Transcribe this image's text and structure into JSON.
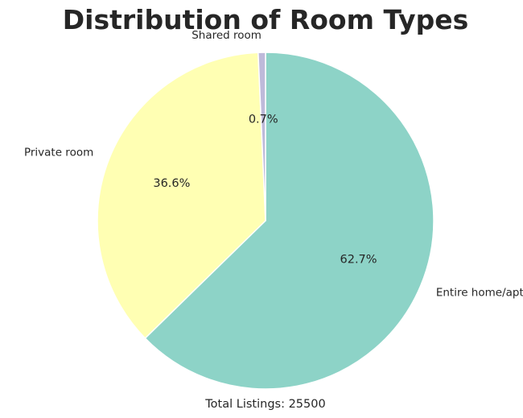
{
  "chart_data": {
    "type": "pie",
    "title": "Distribution of Room Types",
    "categories": [
      "Entire home/apt",
      "Private room",
      "Shared room"
    ],
    "values": [
      62.7,
      36.6,
      0.7
    ],
    "value_labels": [
      "62.7%",
      "36.6%",
      "0.7%"
    ],
    "colors": [
      "#8dd3c7",
      "#ffffb3",
      "#bebada"
    ],
    "start_angle_deg": 90,
    "direction": "clockwise",
    "edge_color": "#ffffff",
    "legend": "none",
    "footer": "Total Listings: 25500"
  }
}
